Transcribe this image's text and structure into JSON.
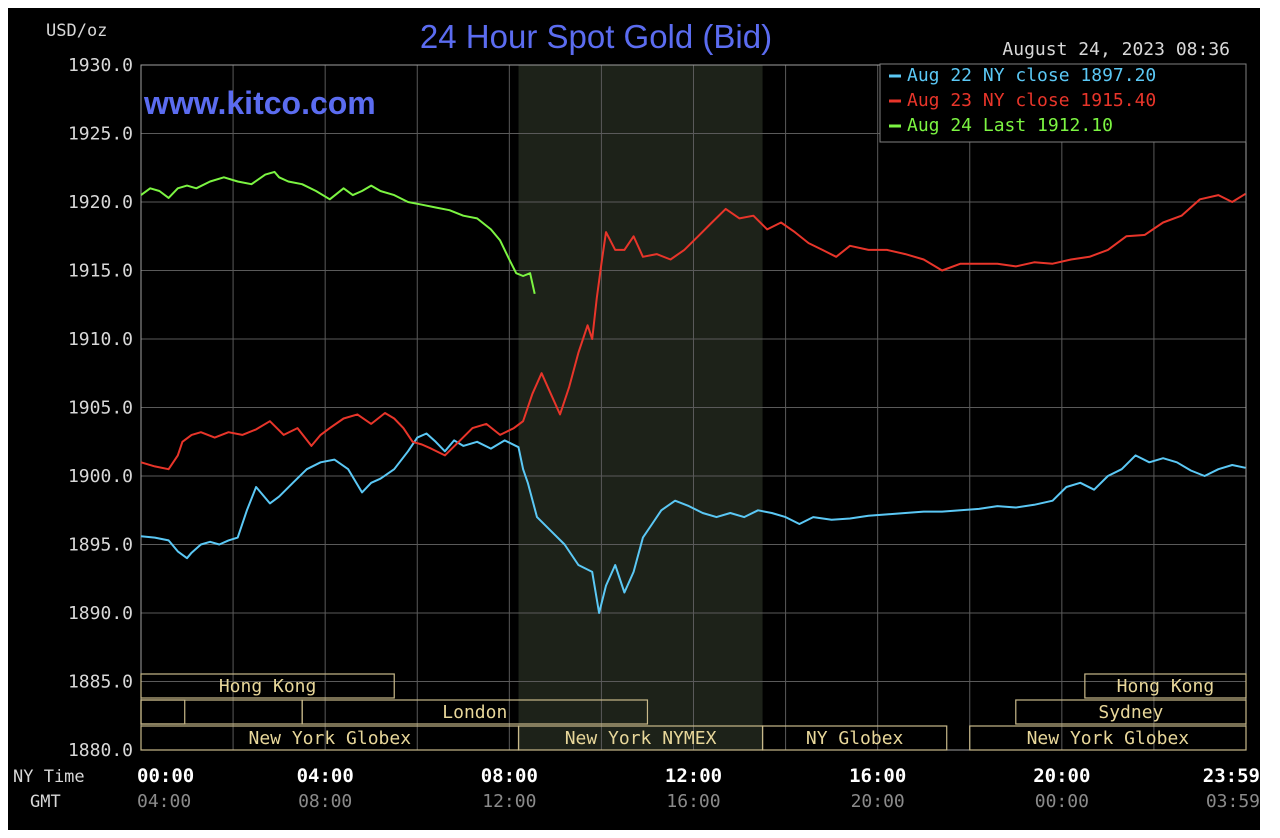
{
  "chart_data": {
    "type": "line",
    "title": "24 Hour Spot Gold (Bid)",
    "watermark": "www.kitco.com",
    "date_label": "August 24, 2023 08:36",
    "ylabel": "USD/oz",
    "ylim": [
      1880,
      1930
    ],
    "y_ticks": [
      "1930.0",
      "1925.0",
      "1920.0",
      "1915.0",
      "1910.0",
      "1905.0",
      "1900.0",
      "1895.0",
      "1890.0",
      "1885.0",
      "1880.0"
    ],
    "x_row_labels": {
      "ny": "NY Time",
      "gmt": "GMT"
    },
    "x_ticks_ny": [
      "00:00",
      "04:00",
      "08:00",
      "12:00",
      "16:00",
      "20:00",
      "23:59"
    ],
    "x_ticks_gmt": [
      "04:00",
      "08:00",
      "12:00",
      "16:00",
      "20:00",
      "00:00",
      "03:59"
    ],
    "x_tick_hours": [
      0,
      4,
      8,
      12,
      16,
      20,
      23.983
    ],
    "xlim_hours": [
      0,
      24
    ],
    "shaded_session_hours": [
      8.2,
      13.5
    ],
    "legend": [
      {
        "text": "Aug 22 NY close 1897.20",
        "color": "#5bc8f5"
      },
      {
        "text": "Aug 23 NY close 1915.40",
        "color": "#e8352a"
      },
      {
        "text": "Aug 24 Last 1912.10",
        "color": "#7cf542"
      }
    ],
    "markets": [
      {
        "label": "Hong Kong",
        "row": 0,
        "start": 0.0,
        "end": 5.5
      },
      {
        "label": "Hong Kong",
        "row": 0,
        "start": 20.5,
        "end": 24.0
      },
      {
        "label": "",
        "row": 1,
        "start": 0.0,
        "end": 0.95
      },
      {
        "label": "London",
        "row": 1,
        "start": 3.5,
        "end": 11.0
      },
      {
        "label": "Sydney",
        "row": 1,
        "start": 19.0,
        "end": 24.0
      },
      {
        "label": "",
        "row": 1,
        "start": 0.0,
        "end": 3.5
      },
      {
        "label": "New York Globex",
        "row": 2,
        "start": 0.0,
        "end": 8.2
      },
      {
        "label": "New York NYMEX",
        "row": 2,
        "start": 8.2,
        "end": 13.5
      },
      {
        "label": "NY Globex",
        "row": 2,
        "start": 13.5,
        "end": 17.5
      },
      {
        "label": "New York Globex",
        "row": 2,
        "start": 18.0,
        "end": 24.0
      }
    ],
    "series": [
      {
        "name": "Aug 22",
        "color": "#5bc8f5",
        "x": [
          0,
          0.3,
          0.6,
          0.8,
          1.0,
          1.1,
          1.3,
          1.5,
          1.7,
          1.9,
          2.1,
          2.3,
          2.5,
          2.8,
          3.0,
          3.3,
          3.6,
          3.9,
          4.2,
          4.5,
          4.8,
          5.0,
          5.2,
          5.5,
          5.8,
          6.0,
          6.2,
          6.4,
          6.6,
          6.8,
          7.0,
          7.3,
          7.6,
          7.9,
          8.2,
          8.3,
          8.4,
          8.6,
          8.9,
          9.2,
          9.5,
          9.8,
          9.95,
          10.1,
          10.3,
          10.5,
          10.7,
          10.9,
          11.1,
          11.3,
          11.6,
          11.9,
          12.2,
          12.5,
          12.8,
          13.1,
          13.4,
          13.7,
          14.0,
          14.3,
          14.6,
          15.0,
          15.4,
          15.8,
          16.2,
          16.6,
          17.0,
          17.4,
          17.8,
          18.2,
          18.6,
          19.0,
          19.4,
          19.8,
          20.1,
          20.4,
          20.7,
          21.0,
          21.3,
          21.6,
          21.9,
          22.2,
          22.5,
          22.8,
          23.1,
          23.4,
          23.7,
          23.99
        ],
        "values": [
          1895.6,
          1895.5,
          1895.3,
          1894.5,
          1894.0,
          1894.4,
          1895.0,
          1895.2,
          1895.0,
          1895.3,
          1895.5,
          1897.5,
          1899.2,
          1898.0,
          1898.5,
          1899.5,
          1900.5,
          1901.0,
          1901.2,
          1900.5,
          1898.8,
          1899.5,
          1899.8,
          1900.5,
          1901.8,
          1902.8,
          1903.1,
          1902.5,
          1901.8,
          1902.6,
          1902.2,
          1902.5,
          1902.0,
          1902.6,
          1902.1,
          1900.5,
          1899.5,
          1897.0,
          1896.0,
          1895.0,
          1893.5,
          1893.0,
          1890.0,
          1892.0,
          1893.5,
          1891.5,
          1893.0,
          1895.5,
          1896.5,
          1897.5,
          1898.2,
          1897.8,
          1897.3,
          1897.0,
          1897.3,
          1897.0,
          1897.5,
          1897.3,
          1897.0,
          1896.5,
          1897.0,
          1896.8,
          1896.9,
          1897.1,
          1897.2,
          1897.3,
          1897.4,
          1897.4,
          1897.5,
          1897.6,
          1897.8,
          1897.7,
          1897.9,
          1898.2,
          1899.2,
          1899.5,
          1899.0,
          1900.0,
          1900.5,
          1901.5,
          1901.0,
          1901.3,
          1901.0,
          1900.4,
          1900.0,
          1900.5,
          1900.8,
          1900.6
        ]
      },
      {
        "name": "Aug 23",
        "color": "#e8352a",
        "x": [
          0,
          0.3,
          0.6,
          0.8,
          0.9,
          1.1,
          1.3,
          1.6,
          1.9,
          2.2,
          2.5,
          2.8,
          3.1,
          3.4,
          3.7,
          3.9,
          4.1,
          4.4,
          4.7,
          5.0,
          5.3,
          5.5,
          5.7,
          5.9,
          6.1,
          6.3,
          6.6,
          6.9,
          7.2,
          7.5,
          7.8,
          8.1,
          8.3,
          8.5,
          8.7,
          8.9,
          9.1,
          9.3,
          9.5,
          9.7,
          9.8,
          9.9,
          10.0,
          10.1,
          10.3,
          10.5,
          10.7,
          10.9,
          11.2,
          11.5,
          11.8,
          12.1,
          12.4,
          12.7,
          13.0,
          13.3,
          13.6,
          13.9,
          14.2,
          14.5,
          14.8,
          15.1,
          15.4,
          15.8,
          16.2,
          16.6,
          17.0,
          17.4,
          17.8,
          18.2,
          18.6,
          19.0,
          19.4,
          19.8,
          20.2,
          20.6,
          21.0,
          21.4,
          21.8,
          22.2,
          22.6,
          23.0,
          23.4,
          23.7,
          23.99
        ],
        "values": [
          1901.0,
          1900.7,
          1900.5,
          1901.5,
          1902.5,
          1903.0,
          1903.2,
          1902.8,
          1903.2,
          1903.0,
          1903.4,
          1904.0,
          1903.0,
          1903.5,
          1902.2,
          1903.0,
          1903.5,
          1904.2,
          1904.5,
          1903.8,
          1904.6,
          1904.2,
          1903.5,
          1902.5,
          1902.3,
          1902.0,
          1901.5,
          1902.5,
          1903.5,
          1903.8,
          1903.0,
          1903.5,
          1904.0,
          1906.0,
          1907.5,
          1906.0,
          1904.5,
          1906.5,
          1909.0,
          1911.0,
          1910.0,
          1913.0,
          1915.5,
          1917.8,
          1916.5,
          1916.5,
          1917.5,
          1916.0,
          1916.2,
          1915.8,
          1916.5,
          1917.5,
          1918.5,
          1919.5,
          1918.8,
          1919.0,
          1918.0,
          1918.5,
          1917.8,
          1917.0,
          1916.5,
          1916.0,
          1916.8,
          1916.5,
          1916.5,
          1916.2,
          1915.8,
          1915.0,
          1915.5,
          1915.5,
          1915.5,
          1915.3,
          1915.6,
          1915.5,
          1915.8,
          1916.0,
          1916.5,
          1917.5,
          1917.6,
          1918.5,
          1919.0,
          1920.2,
          1920.5,
          1920.0,
          1920.6
        ]
      },
      {
        "name": "Aug 24",
        "color": "#7cf542",
        "x": [
          0,
          0.2,
          0.4,
          0.6,
          0.8,
          1.0,
          1.2,
          1.5,
          1.8,
          2.1,
          2.4,
          2.7,
          2.9,
          3.0,
          3.2,
          3.5,
          3.8,
          4.1,
          4.4,
          4.6,
          4.8,
          5.0,
          5.2,
          5.5,
          5.8,
          6.1,
          6.4,
          6.7,
          7.0,
          7.3,
          7.6,
          7.8,
          8.0,
          8.15,
          8.3,
          8.45,
          8.55
        ],
        "values": [
          1920.5,
          1921.0,
          1920.8,
          1920.3,
          1921.0,
          1921.2,
          1921.0,
          1921.5,
          1921.8,
          1921.5,
          1921.3,
          1922.0,
          1922.2,
          1921.8,
          1921.5,
          1921.3,
          1920.8,
          1920.2,
          1921.0,
          1920.5,
          1920.8,
          1921.2,
          1920.8,
          1920.5,
          1920.0,
          1919.8,
          1919.6,
          1919.4,
          1919.0,
          1918.8,
          1918.0,
          1917.2,
          1915.8,
          1914.8,
          1914.6,
          1914.8,
          1913.3
        ]
      }
    ]
  }
}
